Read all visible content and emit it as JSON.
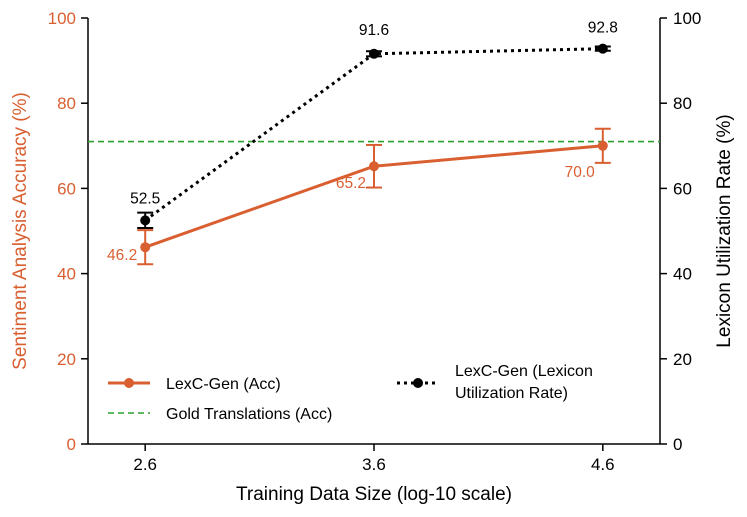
{
  "chart_data": {
    "type": "line",
    "x": [
      2.6,
      3.6,
      4.6
    ],
    "xticks": [
      "2.6",
      "3.6",
      "4.6"
    ],
    "xlabel": "Training Data Size (log-10 scale)",
    "left_axis": {
      "label": "Sentiment Analysis Accuracy (%)",
      "ylim": [
        0,
        100
      ],
      "ticks": [
        "0",
        "20",
        "40",
        "60",
        "80",
        "100"
      ],
      "color": "#d95f31"
    },
    "right_axis": {
      "label": "Lexicon Utilization Rate (%)",
      "ylim": [
        0,
        100
      ],
      "ticks": [
        "0",
        "20",
        "40",
        "60",
        "80",
        "100"
      ],
      "color": "#000000"
    },
    "series": [
      {
        "name": "LexC-Gen (Acc)",
        "axis": "left",
        "color": "#d95f31",
        "style": "solid",
        "values": [
          46.2,
          65.2,
          70.0
        ],
        "errors": [
          4.0,
          5.0,
          4.0
        ],
        "labels": [
          "46.2",
          "65.2",
          "70.0"
        ]
      },
      {
        "name": "LexC-Gen (Lexicon Utilization Rate)",
        "axis": "right",
        "color": "#000000",
        "style": "dotted",
        "values": [
          52.5,
          91.6,
          92.8
        ],
        "errors": [
          1.8,
          0.6,
          0.5
        ],
        "labels": [
          "52.5",
          "91.6",
          "92.8"
        ]
      }
    ],
    "reference_line": {
      "name": "Gold Translations (Acc)",
      "value": 71.0,
      "axis": "left",
      "color": "#2ca02c",
      "style": "dashed"
    },
    "legend": {
      "placement": "bottom",
      "acc_label": "LexC-Gen (Acc)",
      "gold_label": "Gold Translations (Acc)",
      "lex_label_line1": "LexC-Gen (Lexicon",
      "lex_label_line2": "Utilization Rate)"
    }
  }
}
